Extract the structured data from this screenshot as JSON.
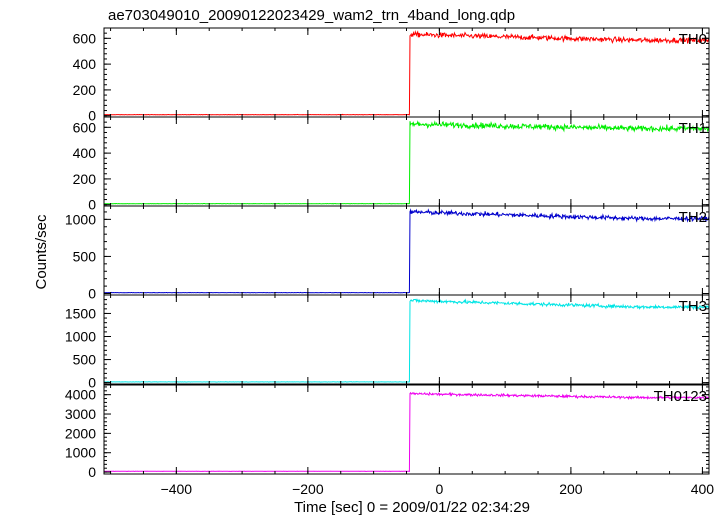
{
  "chart_data": {
    "type": "line",
    "title": "ae703049010_20090122023429_wam2_trn_4band_long.qdp",
    "xlabel": "Time [sec] 0 = 2009/01/22 02:34:29",
    "ylabel": "Counts/sec",
    "xlim": [
      -510,
      410
    ],
    "xticks": [
      -400,
      -200,
      0,
      200,
      400
    ],
    "xtick_labels": [
      "−400",
      "−200",
      "0",
      "200",
      "400"
    ],
    "grid": false,
    "legend": "none",
    "step_time": -45,
    "panels": [
      {
        "name": "TH0",
        "color": "#ff0000",
        "ylim": [
          -10,
          680
        ],
        "yticks": [
          0,
          200,
          400,
          600
        ],
        "background_level": 8,
        "noise_before": 1.5,
        "peak": 630,
        "late_level": 585,
        "noise": 20
      },
      {
        "name": "TH1",
        "color": "#00ee00",
        "ylim": [
          -10,
          680
        ],
        "yticks": [
          0,
          200,
          400,
          600
        ],
        "background_level": 8,
        "noise_before": 1.5,
        "peak": 625,
        "late_level": 590,
        "noise": 22
      },
      {
        "name": "TH2",
        "color": "#0000cc",
        "ylim": [
          -20,
          1180
        ],
        "yticks": [
          0,
          500,
          1000
        ],
        "background_level": 12,
        "noise_before": 2,
        "peak": 1100,
        "late_level": 1010,
        "noise": 30
      },
      {
        "name": "TH3",
        "color": "#00e5e5",
        "ylim": [
          -30,
          1900
        ],
        "yticks": [
          0,
          500,
          1000,
          1500
        ],
        "background_level": 15,
        "noise_before": 3,
        "peak": 1780,
        "late_level": 1640,
        "noise": 35
      },
      {
        "name": "TH0123",
        "color": "#ee00ee",
        "ylim": [
          -100,
          4500
        ],
        "yticks": [
          0,
          1000,
          2000,
          3000,
          4000
        ],
        "background_level": 40,
        "noise_before": 6,
        "peak": 4050,
        "late_level": 3850,
        "noise": 60
      }
    ]
  }
}
